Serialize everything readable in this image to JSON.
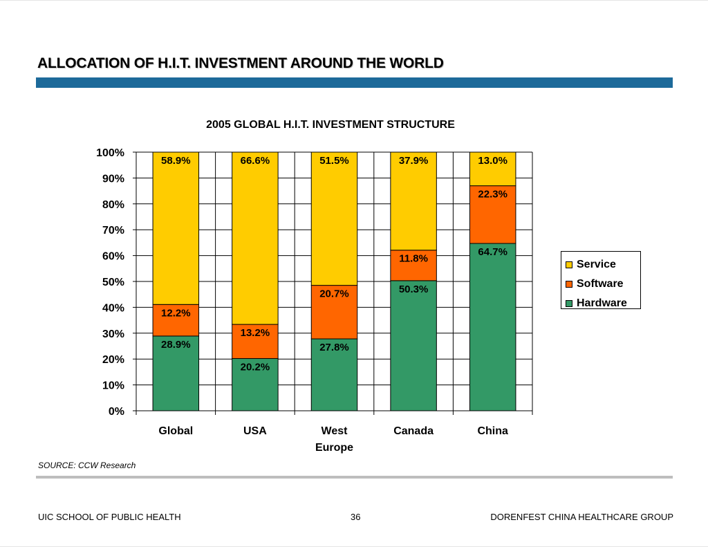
{
  "slide": {
    "title": "ALLOCATION OF H.I.T. INVESTMENT AROUND THE WORLD",
    "rule_color": "#1d6a9a",
    "source": "SOURCE:  CCW Research",
    "footer_left": "UIC SCHOOL OF PUBLIC HEALTH",
    "page_number": "36",
    "footer_right": "DORENFEST CHINA HEALTHCARE GROUP"
  },
  "chart_data": {
    "type": "bar",
    "stacked": true,
    "title": "2005 GLOBAL H.I.T. INVESTMENT STRUCTURE",
    "categories": [
      [
        "Global"
      ],
      [
        "USA"
      ],
      [
        "West",
        "Europe"
      ],
      [
        "Canada"
      ],
      [
        "China"
      ]
    ],
    "series": [
      {
        "name": "Hardware",
        "color": "#339966",
        "values": [
          28.9,
          20.2,
          27.8,
          50.3,
          64.7
        ],
        "labels": [
          "28.9%",
          "20.2%",
          "27.8%",
          "50.3%",
          "64.7%"
        ]
      },
      {
        "name": "Software",
        "color": "#ff6600",
        "values": [
          12.2,
          13.2,
          20.7,
          11.8,
          22.3
        ],
        "labels": [
          "12.2%",
          "13.2%",
          "20.7%",
          "11.8%",
          "22.3%"
        ]
      },
      {
        "name": "Service",
        "color": "#ffcc00",
        "values": [
          58.9,
          66.6,
          51.5,
          37.9,
          13.0
        ],
        "labels": [
          "58.9%",
          "66.6%",
          "51.5%",
          "37.9%",
          "13.0%"
        ]
      }
    ],
    "legend_order": [
      "Service",
      "Software",
      "Hardware"
    ],
    "yticks": [
      "0%",
      "10%",
      "20%",
      "30%",
      "40%",
      "50%",
      "60%",
      "70%",
      "80%",
      "90%",
      "100%"
    ],
    "ylim": [
      0,
      100
    ],
    "grid": true,
    "legend_position": "right"
  }
}
